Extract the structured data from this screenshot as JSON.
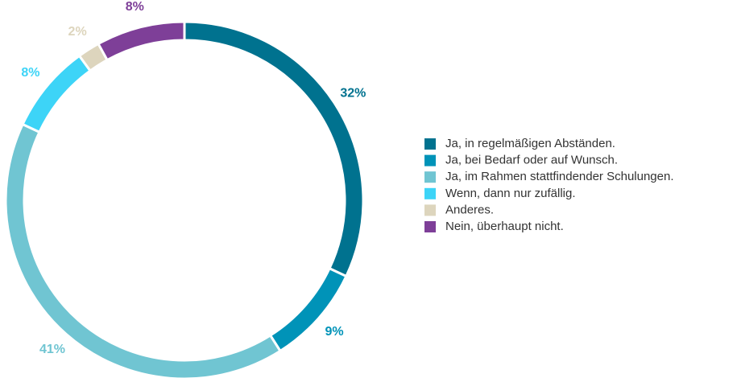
{
  "chart_data": {
    "type": "donut",
    "categories": [
      "Ja, in regelmäßigen Abständen.",
      "Ja, bei Bedarf oder auf Wunsch.",
      "Ja, im Rahmen stattfindender Schulungen.",
      "Wenn, dann nur zufällig.",
      "Anderes.",
      "Nein, überhaupt nicht."
    ],
    "values": [
      32,
      9,
      41,
      8,
      2,
      8
    ],
    "value_labels": [
      "32%",
      "9%",
      "41%",
      "8%",
      "2%",
      "8%"
    ],
    "colors": [
      "#00728f",
      "#0093b8",
      "#70c5d2",
      "#3dd4f7",
      "#ddd5bd",
      "#7e3f98"
    ],
    "legend": "right"
  }
}
